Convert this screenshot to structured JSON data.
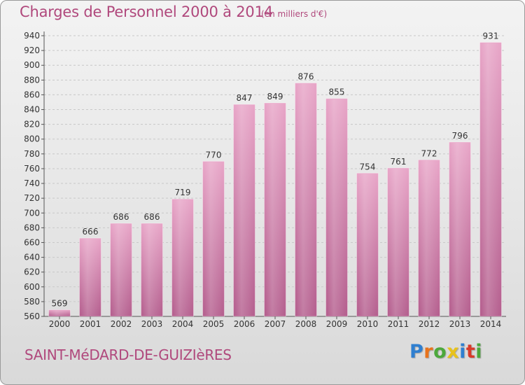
{
  "title": "Charges de Personnel 2000 à 2014",
  "subtitle": "(en milliers d'€)",
  "commune": "SAINT-MéDARD-DE-GUIZIèRES",
  "logo": {
    "letters": [
      "P",
      "r",
      "o",
      "x",
      "i",
      "t",
      "i"
    ],
    "colors": [
      "#2f7fd0",
      "#e8731c",
      "#4ca83c",
      "#e8c21c",
      "#2f7fd0",
      "#d83a2a",
      "#4ca83c"
    ]
  },
  "colors": {
    "bar_top": "#e8a6c8",
    "bar_bottom": "#b5608f",
    "accent": "#b0487c",
    "grid": "#c8c8c8"
  },
  "chart_data": {
    "type": "bar",
    "categories": [
      "2000",
      "2001",
      "2002",
      "2003",
      "2004",
      "2005",
      "2006",
      "2007",
      "2008",
      "2009",
      "2010",
      "2011",
      "2012",
      "2013",
      "2014"
    ],
    "values": [
      569,
      666,
      686,
      686,
      719,
      770,
      847,
      849,
      876,
      855,
      754,
      761,
      772,
      796,
      931
    ],
    "ylim": [
      560,
      940
    ],
    "ytick_step": 20,
    "grid": true,
    "xlabel": "",
    "ylabel": ""
  }
}
